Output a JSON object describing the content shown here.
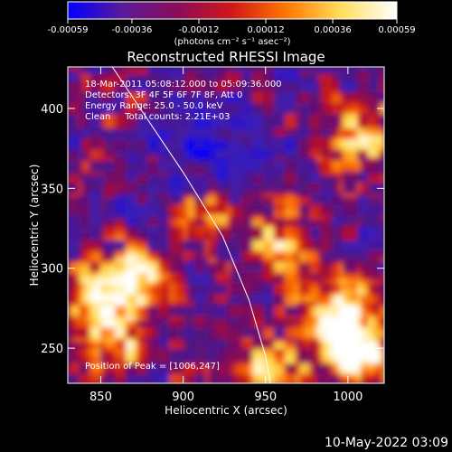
{
  "chart_data": {
    "type": "heatmap",
    "title": "Reconstructed RHESSI Image",
    "xlabel": "Heliocentric X (arcsec)",
    "ylabel": "Heliocentric Y (arcsec)",
    "xlim": [
      830,
      1022
    ],
    "ylim": [
      228,
      426
    ],
    "x_ticks": [
      850,
      900,
      950,
      1000
    ],
    "y_ticks": [
      250,
      300,
      350,
      400
    ],
    "x_tick_labels": [
      "850",
      "900",
      "950",
      "1000"
    ],
    "y_tick_labels": [
      "250",
      "300",
      "350",
      "400"
    ],
    "colorbar": {
      "range": [
        -0.00059,
        0.00059
      ],
      "ticks": [
        -0.00059,
        -0.00036,
        -0.00012,
        0.00012,
        0.00036,
        0.00059
      ],
      "tick_labels": [
        "-0.00059",
        "-0.00036",
        "-0.00012",
        "0.00012",
        "0.00036",
        "0.00059"
      ],
      "unit_label": "(photons cm⁻² s⁻¹ asec⁻²)",
      "colors": [
        "#0000ff",
        "#5a1a9a",
        "#8a0c5a",
        "#d01818",
        "#ff7a00",
        "#ffe060",
        "#ffffff"
      ]
    },
    "annotations": [
      "18-Mar-2011 05:08:12.000 to 05:09:36.000",
      "Detectors: 3F 4F 5F 6F 7F 8F, Att 0",
      "Energy Range: 25.0 - 50.0 keV",
      "Clean     Total counts: 2.21E+03"
    ],
    "peak_label": "Position of Peak = [1006,247]",
    "peak": [
      1006,
      247
    ],
    "bright_regions": [
      {
        "x": 872,
        "y": 298,
        "value": 0.0005
      },
      {
        "x": 850,
        "y": 278,
        "value": 0.0004
      },
      {
        "x": 858,
        "y": 252,
        "value": 0.00038
      },
      {
        "x": 992,
        "y": 272,
        "value": 0.00055
      },
      {
        "x": 1006,
        "y": 247,
        "value": 0.00059
      },
      {
        "x": 1008,
        "y": 387,
        "value": 0.0004
      },
      {
        "x": 950,
        "y": 232,
        "value": 0.00045
      },
      {
        "x": 958,
        "y": 315,
        "value": 0.0004
      },
      {
        "x": 930,
        "y": 338,
        "value": 0.00032
      },
      {
        "x": 900,
        "y": 340,
        "value": 0.00025
      }
    ],
    "dark_regions": [
      {
        "x": 905,
        "y": 375,
        "value": -0.0003
      },
      {
        "x": 930,
        "y": 360,
        "value": -0.0004
      },
      {
        "x": 880,
        "y": 330,
        "value": -0.0003
      }
    ],
    "limb_curve": [
      [
        857,
        426
      ],
      [
        900,
        360
      ],
      [
        924,
        320
      ],
      [
        940,
        280
      ],
      [
        950,
        245
      ],
      [
        953,
        228
      ]
    ]
  },
  "timestamp": "10-May-2022 03:09"
}
